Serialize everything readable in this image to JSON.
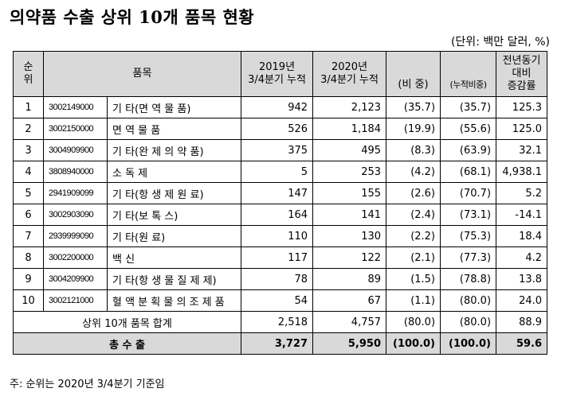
{
  "title": "의약품 수출 상위 10개 품목 현황",
  "unit": "(단위: 백만 달러, %)",
  "headers": {
    "rank": "순위",
    "item": "품목",
    "y2019": "2019년\n3/4분기 누적",
    "y2020": "2020년\n3/4분기 누적",
    "share": "(비 중)",
    "cum_share": "(누적비중)",
    "yoy": "전년동기대비\n증감률"
  },
  "rows": [
    {
      "rank": "1",
      "code": "3002149000",
      "name": "기 타(면 역 물 품)",
      "v2019": "942",
      "v2020": "2,123",
      "share": "(35.7)",
      "cum": "(35.7)",
      "yoy": "125.3"
    },
    {
      "rank": "2",
      "code": "3002150000",
      "name": "면 역 물 품",
      "v2019": "526",
      "v2020": "1,184",
      "share": "(19.9)",
      "cum": "(55.6)",
      "yoy": "125.0"
    },
    {
      "rank": "3",
      "code": "3004909900",
      "name": "기 타(완 제 의 약 품)",
      "v2019": "375",
      "v2020": "495",
      "share": "(8.3)",
      "cum": "(63.9)",
      "yoy": "32.1"
    },
    {
      "rank": "4",
      "code": "3808940000",
      "name": "소 독 제",
      "v2019": "5",
      "v2020": "253",
      "share": "(4.2)",
      "cum": "(68.1)",
      "yoy": "4,938.1"
    },
    {
      "rank": "5",
      "code": "2941909099",
      "name": "기 타(항 생 제 원 료)",
      "v2019": "147",
      "v2020": "155",
      "share": "(2.6)",
      "cum": "(70.7)",
      "yoy": "5.2"
    },
    {
      "rank": "6",
      "code": "3002903090",
      "name": "기 타(보 톡 스)",
      "v2019": "164",
      "v2020": "141",
      "share": "(2.4)",
      "cum": "(73.1)",
      "yoy": "-14.1"
    },
    {
      "rank": "7",
      "code": "2939999090",
      "name": "기 타(원 료)",
      "v2019": "110",
      "v2020": "130",
      "share": "(2.2)",
      "cum": "(75.3)",
      "yoy": "18.4"
    },
    {
      "rank": "8",
      "code": "3002200000",
      "name": "백 신",
      "v2019": "117",
      "v2020": "122",
      "share": "(2.1)",
      "cum": "(77.3)",
      "yoy": "4.2"
    },
    {
      "rank": "9",
      "code": "3004209900",
      "name": "기 타(항 생 물 질 제 제)",
      "v2019": "78",
      "v2020": "89",
      "share": "(1.5)",
      "cum": "(78.8)",
      "yoy": "13.8"
    },
    {
      "rank": "10",
      "code": "3002121000",
      "name": "혈 액 분 획 물 의 조 제 품",
      "v2019": "54",
      "v2020": "67",
      "share": "(1.1)",
      "cum": "(80.0)",
      "yoy": "24.0"
    }
  ],
  "subtotal": {
    "label": "상위 10개 품목 합계",
    "v2019": "2,518",
    "v2020": "4,757",
    "share": "(80.0)",
    "cum": "(80.0)",
    "yoy": "88.9"
  },
  "total": {
    "label": "총 수 출",
    "v2019": "3,727",
    "v2020": "5,950",
    "share": "(100.0)",
    "cum": "(100.0)",
    "yoy": "59.6"
  },
  "note": "주: 순위는 2020년 3/4분기 기준임"
}
